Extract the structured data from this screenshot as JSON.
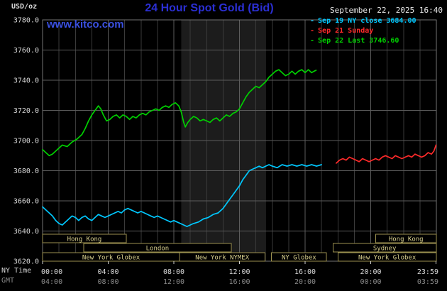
{
  "colors": {
    "background": "#000000",
    "title_blue": "#2b2fd4",
    "watermark_blue": "#3a50e0",
    "axis_text": "#d9d9d9",
    "gmt_text": "#8a8a8a",
    "grid_major": "#5c5c5c",
    "grid_minor": "#3a3a3a",
    "plot_border": "#757575",
    "band_fill": "#1c1c1c",
    "tick_mark": "#cfcfcf",
    "session_border": "#9b9150",
    "session_text": "#d8cf8e",
    "series_cyan": "#00c8ff",
    "series_red": "#ff2a2a",
    "series_green": "#00d000"
  },
  "header": {
    "units": "USD/oz",
    "title": "24 Hour Spot Gold (Bid)",
    "datetime": "September 22, 2025 16:40",
    "watermark": "www.kitco.com"
  },
  "legend": {
    "items": [
      {
        "label": "Sep 19 NY close 3684.00",
        "color_key": "series_cyan"
      },
      {
        "label": "Sep 21 Sunday",
        "color_key": "series_red"
      },
      {
        "label": "Sep 22 Last 3746.60",
        "color_key": "series_green"
      }
    ]
  },
  "axes": {
    "ny_time_label": "NY Time",
    "gmt_label": "GMT",
    "x_tick_hours": [
      0,
      4,
      8,
      12,
      16,
      20,
      23.983
    ],
    "ny_tick_labels": [
      "00:00",
      "04:00",
      "08:00",
      "12:00",
      "16:00",
      "20:00",
      "23:59"
    ],
    "gmt_tick_labels": [
      "04:00",
      "08:00",
      "12:00",
      "16:00",
      "20:00",
      "00:00",
      "03:59"
    ],
    "y_tick_values": [
      3780,
      3760,
      3740,
      3720,
      3700,
      3680,
      3660,
      3640,
      3620
    ],
    "y_tick_labels": [
      "3780.0",
      "3760.0",
      "3740.0",
      "3720.0",
      "3700.0",
      "3680.0",
      "3660.0",
      "3640.0",
      "3620.0"
    ]
  },
  "sessions": {
    "rows": [
      {
        "boxes": [
          {
            "label": "Hong Kong",
            "start_hour": 0,
            "end_hour": 5.1
          },
          {
            "label": "Hong Kong",
            "start_hour": 20.3,
            "end_hour": 24
          }
        ]
      },
      {
        "boxes": [
          {
            "label": "London",
            "start_hour": 2.5,
            "end_hour": 11.5
          },
          {
            "label": "Sydney",
            "start_hour": 17.7,
            "end_hour": 24
          }
        ]
      },
      {
        "boxes": [
          {
            "label": "New York Globex",
            "start_hour": 0,
            "end_hour": 8.35
          },
          {
            "label": "New York NYMEX",
            "start_hour": 8.35,
            "end_hour": 13.55
          },
          {
            "label": "NY Globex",
            "start_hour": 13.95,
            "end_hour": 17.3
          },
          {
            "label": "New York Globex",
            "start_hour": 18,
            "end_hour": 24
          }
        ]
      }
    ]
  },
  "chart_data": {
    "type": "line",
    "title": "24 Hour Spot Gold (Bid)",
    "xlabel": "NY Time",
    "ylabel": "USD/oz",
    "xlim_hours": [
      0,
      24
    ],
    "ylim": [
      3620,
      3780
    ],
    "y_tick_step": 20,
    "grid": true,
    "legend_position": "top-right",
    "shaded_band_hours": [
      8.45,
      13.62
    ],
    "series": [
      {
        "name": "Sep 19 NY close",
        "close_value": 3684.0,
        "color_key": "series_cyan",
        "points": [
          [
            0,
            3656
          ],
          [
            0.2,
            3654
          ],
          [
            0.4,
            3652
          ],
          [
            0.6,
            3650
          ],
          [
            0.8,
            3647
          ],
          [
            1.0,
            3645
          ],
          [
            1.2,
            3644
          ],
          [
            1.4,
            3646
          ],
          [
            1.6,
            3648
          ],
          [
            1.8,
            3650
          ],
          [
            2.0,
            3649
          ],
          [
            2.2,
            3647
          ],
          [
            2.4,
            3649
          ],
          [
            2.6,
            3650
          ],
          [
            2.8,
            3648
          ],
          [
            3.0,
            3647
          ],
          [
            3.2,
            3649
          ],
          [
            3.4,
            3651
          ],
          [
            3.6,
            3650
          ],
          [
            3.8,
            3649
          ],
          [
            4.0,
            3650
          ],
          [
            4.2,
            3651
          ],
          [
            4.4,
            3652
          ],
          [
            4.6,
            3653
          ],
          [
            4.8,
            3652
          ],
          [
            5.0,
            3654
          ],
          [
            5.2,
            3655
          ],
          [
            5.4,
            3654
          ],
          [
            5.6,
            3653
          ],
          [
            5.8,
            3652
          ],
          [
            6.0,
            3653
          ],
          [
            6.2,
            3652
          ],
          [
            6.4,
            3651
          ],
          [
            6.6,
            3650
          ],
          [
            6.8,
            3649
          ],
          [
            7.0,
            3650
          ],
          [
            7.2,
            3649
          ],
          [
            7.4,
            3648
          ],
          [
            7.6,
            3647
          ],
          [
            7.8,
            3646
          ],
          [
            8.0,
            3647
          ],
          [
            8.2,
            3646
          ],
          [
            8.4,
            3645
          ],
          [
            8.6,
            3644
          ],
          [
            8.8,
            3643
          ],
          [
            9.0,
            3644
          ],
          [
            9.2,
            3645
          ],
          [
            9.5,
            3646
          ],
          [
            9.8,
            3648
          ],
          [
            10.1,
            3649
          ],
          [
            10.4,
            3651
          ],
          [
            10.7,
            3652
          ],
          [
            11.0,
            3655
          ],
          [
            11.2,
            3658
          ],
          [
            11.4,
            3661
          ],
          [
            11.6,
            3664
          ],
          [
            11.8,
            3667
          ],
          [
            12.0,
            3670
          ],
          [
            12.2,
            3674
          ],
          [
            12.4,
            3677
          ],
          [
            12.6,
            3680
          ],
          [
            12.8,
            3681
          ],
          [
            13.0,
            3682
          ],
          [
            13.2,
            3683
          ],
          [
            13.4,
            3682
          ],
          [
            13.6,
            3683
          ],
          [
            13.8,
            3684
          ],
          [
            14.0,
            3683
          ],
          [
            14.3,
            3682
          ],
          [
            14.6,
            3684
          ],
          [
            14.9,
            3683
          ],
          [
            15.2,
            3684
          ],
          [
            15.5,
            3683
          ],
          [
            15.8,
            3684
          ],
          [
            16.1,
            3683
          ],
          [
            16.4,
            3684
          ],
          [
            16.7,
            3683
          ],
          [
            17.0,
            3684
          ]
        ]
      },
      {
        "name": "Sep 21 Sunday",
        "color_key": "series_red",
        "points": [
          [
            17.9,
            3685
          ],
          [
            18.1,
            3687
          ],
          [
            18.3,
            3688
          ],
          [
            18.5,
            3687
          ],
          [
            18.7,
            3689
          ],
          [
            18.9,
            3688
          ],
          [
            19.1,
            3687
          ],
          [
            19.3,
            3686
          ],
          [
            19.5,
            3688
          ],
          [
            19.7,
            3687
          ],
          [
            19.9,
            3686
          ],
          [
            20.1,
            3687
          ],
          [
            20.3,
            3688
          ],
          [
            20.5,
            3687
          ],
          [
            20.7,
            3689
          ],
          [
            20.9,
            3690
          ],
          [
            21.1,
            3689
          ],
          [
            21.3,
            3688
          ],
          [
            21.5,
            3690
          ],
          [
            21.7,
            3689
          ],
          [
            21.9,
            3688
          ],
          [
            22.1,
            3689
          ],
          [
            22.3,
            3690
          ],
          [
            22.5,
            3689
          ],
          [
            22.7,
            3691
          ],
          [
            22.9,
            3690
          ],
          [
            23.1,
            3689
          ],
          [
            23.3,
            3690
          ],
          [
            23.5,
            3692
          ],
          [
            23.7,
            3691
          ],
          [
            23.85,
            3693
          ],
          [
            23.98,
            3697
          ]
        ]
      },
      {
        "name": "Sep 22 Last",
        "last_value": 3746.6,
        "color_key": "series_green",
        "points": [
          [
            0,
            3694
          ],
          [
            0.2,
            3692
          ],
          [
            0.4,
            3690
          ],
          [
            0.6,
            3691
          ],
          [
            0.9,
            3694
          ],
          [
            1.2,
            3697
          ],
          [
            1.5,
            3696
          ],
          [
            1.8,
            3699
          ],
          [
            2.1,
            3701
          ],
          [
            2.4,
            3704
          ],
          [
            2.6,
            3708
          ],
          [
            2.8,
            3713
          ],
          [
            3.0,
            3717
          ],
          [
            3.2,
            3720
          ],
          [
            3.4,
            3723
          ],
          [
            3.55,
            3721
          ],
          [
            3.7,
            3717
          ],
          [
            3.9,
            3713
          ],
          [
            4.1,
            3714
          ],
          [
            4.3,
            3716
          ],
          [
            4.5,
            3717
          ],
          [
            4.7,
            3715
          ],
          [
            4.9,
            3717
          ],
          [
            5.1,
            3716
          ],
          [
            5.3,
            3714
          ],
          [
            5.5,
            3716
          ],
          [
            5.7,
            3715
          ],
          [
            5.9,
            3717
          ],
          [
            6.1,
            3718
          ],
          [
            6.3,
            3717
          ],
          [
            6.5,
            3719
          ],
          [
            6.7,
            3720
          ],
          [
            6.9,
            3721
          ],
          [
            7.1,
            3720
          ],
          [
            7.3,
            3722
          ],
          [
            7.5,
            3723
          ],
          [
            7.7,
            3722
          ],
          [
            7.9,
            3724
          ],
          [
            8.1,
            3725
          ],
          [
            8.3,
            3723
          ],
          [
            8.45,
            3719
          ],
          [
            8.6,
            3712
          ],
          [
            8.7,
            3709
          ],
          [
            8.85,
            3712
          ],
          [
            9.0,
            3714
          ],
          [
            9.2,
            3716
          ],
          [
            9.4,
            3715
          ],
          [
            9.6,
            3713
          ],
          [
            9.8,
            3714
          ],
          [
            10.0,
            3713
          ],
          [
            10.2,
            3712
          ],
          [
            10.4,
            3714
          ],
          [
            10.6,
            3715
          ],
          [
            10.8,
            3713
          ],
          [
            11.0,
            3715
          ],
          [
            11.2,
            3717
          ],
          [
            11.4,
            3716
          ],
          [
            11.6,
            3718
          ],
          [
            11.8,
            3719
          ],
          [
            12.0,
            3721
          ],
          [
            12.2,
            3725
          ],
          [
            12.4,
            3729
          ],
          [
            12.6,
            3732
          ],
          [
            12.8,
            3734
          ],
          [
            13.0,
            3736
          ],
          [
            13.2,
            3735
          ],
          [
            13.4,
            3737
          ],
          [
            13.6,
            3739
          ],
          [
            13.8,
            3742
          ],
          [
            14.0,
            3744
          ],
          [
            14.2,
            3746
          ],
          [
            14.4,
            3747
          ],
          [
            14.6,
            3745
          ],
          [
            14.8,
            3743
          ],
          [
            15.0,
            3744
          ],
          [
            15.2,
            3746
          ],
          [
            15.4,
            3744
          ],
          [
            15.6,
            3746
          ],
          [
            15.8,
            3747
          ],
          [
            16.0,
            3745
          ],
          [
            16.2,
            3747
          ],
          [
            16.4,
            3745
          ],
          [
            16.55,
            3746
          ],
          [
            16.67,
            3746.6
          ]
        ]
      }
    ]
  }
}
